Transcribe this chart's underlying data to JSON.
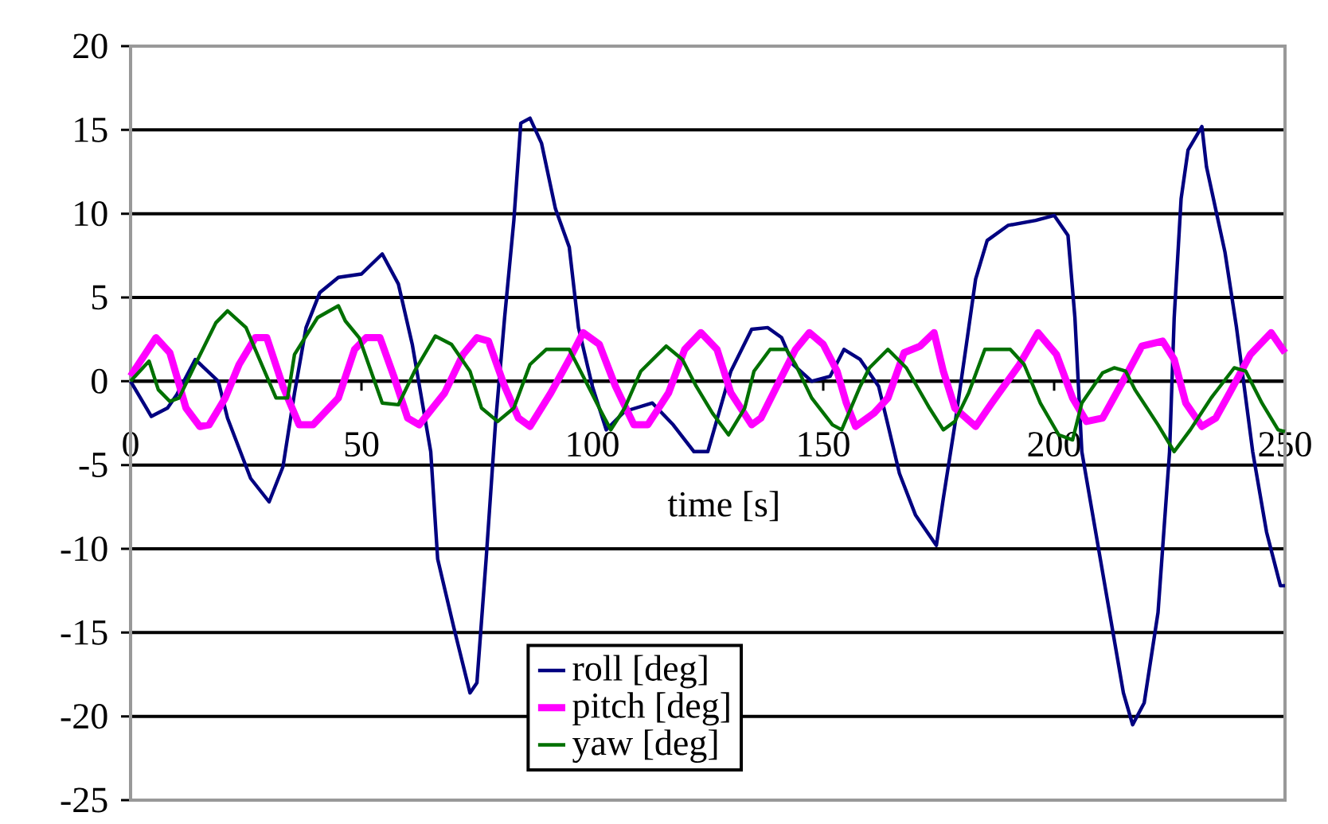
{
  "chart_data": {
    "type": "line",
    "xlabel": "time [s]",
    "xlim": [
      0,
      250
    ],
    "ylim": [
      -25,
      20
    ],
    "xticks": [
      0,
      50,
      100,
      150,
      200,
      250
    ],
    "yticks": [
      -25,
      -20,
      -15,
      -10,
      -5,
      0,
      5,
      10,
      15,
      20
    ],
    "grid": "y",
    "legend": "bottom",
    "marker": "none",
    "line_style": "solid",
    "series": [
      {
        "name": "roll [deg]",
        "color": "#000080",
        "x": [
          0,
          4.5,
          8,
          10,
          14,
          19,
          21,
          26,
          30,
          33,
          35.5,
          38,
          41,
          45,
          50,
          54.5,
          58,
          61,
          65,
          66.5,
          70,
          73.5,
          75,
          77,
          79,
          81,
          83,
          84.5,
          86.5,
          89,
          92,
          95,
          97,
          100,
          103,
          107,
          113,
          117.5,
          122,
          125,
          130,
          134.5,
          138,
          141,
          143.5,
          147.5,
          151.5,
          154.5,
          158,
          162,
          164,
          166.5,
          170,
          174.5,
          176,
          178.5,
          181,
          183,
          185.5,
          190,
          196,
          200,
          203,
          204.5,
          206,
          209,
          212,
          215,
          217,
          219.5,
          222.5,
          225,
          226,
          227.5,
          229,
          232,
          233,
          237,
          239.5,
          243,
          246,
          247.5,
          249,
          250
        ],
        "values": [
          0,
          -2.1,
          -1.6,
          -0.8,
          1.3,
          0,
          -2.2,
          -5.8,
          -7.2,
          -5.1,
          -0.7,
          3.2,
          5.3,
          6.2,
          6.4,
          7.6,
          5.8,
          2.2,
          -4.2,
          -10.6,
          -14.7,
          -18.6,
          -18,
          -10.6,
          -2.6,
          3.8,
          9.6,
          15.4,
          15.7,
          14.2,
          10.3,
          8,
          3.2,
          -0.3,
          -2.9,
          -1.8,
          -1.3,
          -2.6,
          -4.2,
          -4.2,
          0.6,
          3.1,
          3.2,
          2.6,
          1,
          0,
          0.3,
          1.9,
          1.3,
          -0.3,
          -2.6,
          -5.5,
          -8,
          -9.8,
          -7,
          -2.6,
          2.2,
          6.1,
          8.4,
          9.3,
          9.6,
          9.9,
          8.7,
          3.8,
          -4.2,
          -9,
          -13.8,
          -18.6,
          -20.5,
          -19.2,
          -13.8,
          -4.2,
          3.8,
          10.9,
          13.8,
          15.2,
          12.8,
          7.7,
          3.2,
          -4.2,
          -9,
          -10.6,
          -12.2,
          -12.2
        ]
      },
      {
        "name": "pitch [deg]",
        "color": "#ff00ff",
        "x": [
          0,
          5.5,
          8.5,
          10,
          12,
          15,
          17,
          20.5,
          23.5,
          27,
          29.5,
          33,
          36.5,
          39.5,
          45,
          48.5,
          51,
          54,
          57,
          60,
          62.5,
          68,
          72,
          75,
          77.5,
          81,
          84,
          86.5,
          91,
          95,
          98,
          101.5,
          105,
          109,
          112,
          116.5,
          120,
          123.5,
          127,
          130,
          134.5,
          136.5,
          140.5,
          144,
          147,
          150,
          153,
          155,
          157,
          161,
          164,
          167.5,
          171,
          174,
          176,
          178.5,
          183,
          186.5,
          192.5,
          196.5,
          200.5,
          204,
          207,
          210.5,
          215.5,
          219,
          223.5,
          226,
          228.5,
          232,
          235,
          238,
          242.5,
          247,
          250
        ],
        "values": [
          0.3,
          2.6,
          1.7,
          0.3,
          -1.6,
          -2.7,
          -2.6,
          -1,
          1,
          2.6,
          2.6,
          -0.3,
          -2.6,
          -2.6,
          -1,
          1.9,
          2.6,
          2.6,
          0.3,
          -2.2,
          -2.6,
          -0.7,
          1.6,
          2.6,
          2.4,
          -0.3,
          -2.2,
          -2.7,
          -0.7,
          1.3,
          2.9,
          2.2,
          -0.3,
          -2.6,
          -2.6,
          -0.7,
          1.9,
          2.9,
          1.9,
          -0.7,
          -2.6,
          -2.2,
          0,
          1.9,
          2.9,
          2.2,
          0.6,
          -1.3,
          -2.7,
          -1.9,
          -1,
          1.7,
          2.1,
          2.9,
          0.6,
          -1.6,
          -2.7,
          -1.3,
          1,
          2.9,
          1.6,
          -1,
          -2.4,
          -2.2,
          0.3,
          2.1,
          2.4,
          1.3,
          -1.3,
          -2.7,
          -2.2,
          -0.7,
          1.6,
          2.9,
          1.7
        ]
      },
      {
        "name": "yaw [deg]",
        "color": "#007000",
        "x": [
          0,
          4,
          6,
          8.5,
          10.5,
          14,
          18.5,
          21,
          25,
          27,
          31.5,
          34,
          35.5,
          40.5,
          45,
          46.5,
          49.5,
          54.5,
          58,
          61.5,
          66,
          69.5,
          73.5,
          76,
          79.5,
          83,
          86.5,
          90,
          95,
          98,
          101.5,
          104,
          107,
          110.5,
          116,
          119.5,
          122.5,
          126,
          129.5,
          133,
          135,
          138.5,
          142,
          144,
          147.5,
          152,
          154,
          158,
          160,
          164,
          168,
          173,
          176,
          178.5,
          181.5,
          185,
          190.5,
          193.5,
          197,
          201,
          204,
          206,
          210.5,
          213,
          215.5,
          217.5,
          222.5,
          226,
          229.5,
          234,
          239,
          241.5,
          245,
          248.5,
          250
        ],
        "values": [
          0,
          1.2,
          -0.5,
          -1.2,
          -1,
          1,
          3.5,
          4.2,
          3.2,
          1.9,
          -1,
          -1,
          1.6,
          3.8,
          4.5,
          3.6,
          2.6,
          -1.3,
          -1.4,
          0.6,
          2.7,
          2.2,
          0.6,
          -1.6,
          -2.4,
          -1.6,
          1,
          1.9,
          1.9,
          0.3,
          -1.6,
          -2.9,
          -1.6,
          0.6,
          2.1,
          1.3,
          -0.3,
          -1.9,
          -3.2,
          -1.6,
          0.6,
          1.9,
          1.9,
          1,
          -1,
          -2.6,
          -2.9,
          -0.3,
          0.8,
          1.9,
          0.8,
          -1.6,
          -2.9,
          -2.4,
          -0.7,
          1.9,
          1.9,
          1,
          -1.3,
          -3.2,
          -3.5,
          -1.3,
          0.5,
          0.8,
          0.6,
          -0.5,
          -2.6,
          -4.2,
          -2.9,
          -1,
          0.8,
          0.6,
          -1.3,
          -2.9,
          -3
        ]
      }
    ]
  }
}
